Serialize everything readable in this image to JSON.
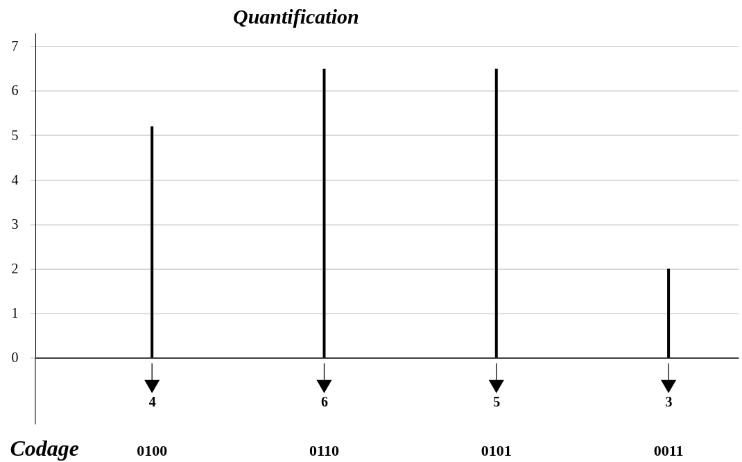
{
  "chart_data": {
    "type": "bar",
    "title": "Quantification",
    "xlabel": "Codage",
    "categories": [
      "4",
      "6",
      "5",
      "3"
    ],
    "values": [
      5.2,
      6.5,
      6.5,
      2.0
    ],
    "color": "#000000",
    "ylim": [
      0,
      7.3
    ],
    "yticks": [
      0,
      1,
      2,
      3,
      4,
      5,
      6,
      7
    ],
    "grid": "y",
    "annotations": [
      "0100",
      "0110",
      "0101",
      "0011"
    ]
  }
}
